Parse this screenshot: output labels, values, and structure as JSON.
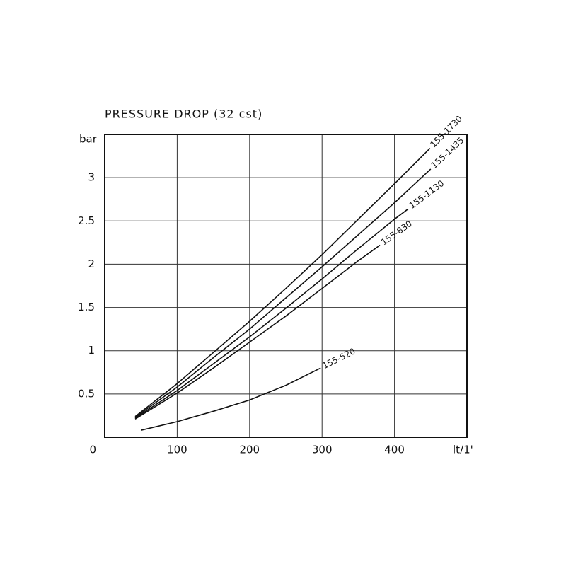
{
  "chart_data": {
    "type": "line",
    "title": "PRESSURE DROP (32 cst)",
    "y_label": "bar",
    "x_label": "lt/1'",
    "xlim": [
      0,
      500
    ],
    "xticks": [
      100,
      200,
      300,
      400
    ],
    "ylim": [
      0,
      3.5
    ],
    "yticks": [
      0,
      0.5,
      1,
      1.5,
      2,
      2.5,
      3
    ],
    "grid": true,
    "series": [
      {
        "name": "155-1730",
        "color": "#111111",
        "x": [
          42,
          100,
          150,
          200,
          250,
          300,
          350,
          400,
          449
        ],
        "values": [
          0.24,
          0.62,
          0.98,
          1.34,
          1.72,
          2.11,
          2.52,
          2.93,
          3.34
        ]
      },
      {
        "name": "155-1435",
        "color": "#111111",
        "x": [
          42,
          100,
          150,
          200,
          250,
          300,
          350,
          400,
          450
        ],
        "values": [
          0.23,
          0.58,
          0.92,
          1.25,
          1.61,
          1.97,
          2.34,
          2.71,
          3.1
        ]
      },
      {
        "name": "155-1130",
        "color": "#111111",
        "x": [
          42,
          100,
          150,
          200,
          250,
          300,
          350,
          400,
          419
        ],
        "values": [
          0.22,
          0.54,
          0.85,
          1.16,
          1.49,
          1.83,
          2.18,
          2.52,
          2.64
        ]
      },
      {
        "name": "155-830",
        "color": "#111111",
        "x": [
          42,
          100,
          150,
          200,
          250,
          300,
          350,
          380
        ],
        "values": [
          0.21,
          0.51,
          0.8,
          1.1,
          1.4,
          1.72,
          2.04,
          2.22
        ]
      },
      {
        "name": "155-520",
        "color": "#111111",
        "x": [
          50,
          100,
          150,
          200,
          250,
          298
        ],
        "values": [
          0.08,
          0.18,
          0.3,
          0.43,
          0.6,
          0.8
        ]
      }
    ]
  }
}
